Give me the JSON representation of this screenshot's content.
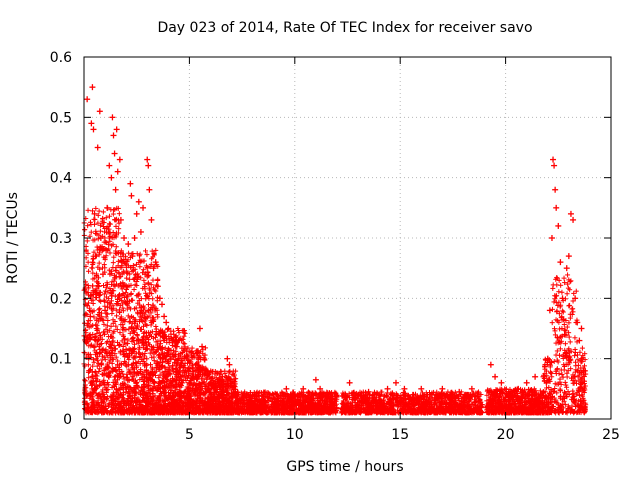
{
  "chart_data": {
    "type": "scatter",
    "title": "Day 023 of 2014, Rate Of TEC Index for receiver savo",
    "xlabel": "GPS time / hours",
    "ylabel": "ROTI / TECUs",
    "xlim": [
      0,
      25
    ],
    "ylim": [
      0,
      0.6
    ],
    "x_ticks": [
      "0",
      "5",
      "10",
      "15",
      "20",
      "25"
    ],
    "y_ticks": [
      "0",
      "0.1",
      "0.2",
      "0.3",
      "0.4",
      "0.5",
      "0.6"
    ],
    "x_tick_values": [
      0,
      5,
      10,
      15,
      20,
      25
    ],
    "y_tick_values": [
      0,
      0.1,
      0.2,
      0.3,
      0.4,
      0.5,
      0.6
    ],
    "grid": true,
    "marker": "plus",
    "series": [
      {
        "name": "ROTI",
        "color": "#ff0000",
        "points": [
          [
            0.1,
            0.04
          ],
          [
            0.15,
            0.53
          ],
          [
            0.25,
            0.08
          ],
          [
            0.3,
            0.17
          ],
          [
            0.35,
            0.49
          ],
          [
            0.4,
            0.55
          ],
          [
            0.45,
            0.48
          ],
          [
            0.5,
            0.34
          ],
          [
            0.55,
            0.27
          ],
          [
            0.6,
            0.11
          ],
          [
            0.65,
            0.45
          ],
          [
            0.7,
            0.22
          ],
          [
            0.75,
            0.51
          ],
          [
            0.8,
            0.3
          ],
          [
            0.9,
            0.24
          ],
          [
            1.0,
            0.18
          ],
          [
            1.05,
            0.28
          ],
          [
            1.1,
            0.35
          ],
          [
            1.2,
            0.42
          ],
          [
            1.3,
            0.4
          ],
          [
            1.35,
            0.5
          ],
          [
            1.4,
            0.47
          ],
          [
            1.45,
            0.44
          ],
          [
            1.5,
            0.38
          ],
          [
            1.55,
            0.48
          ],
          [
            1.6,
            0.41
          ],
          [
            1.7,
            0.43
          ],
          [
            1.75,
            0.33
          ],
          [
            1.8,
            0.26
          ],
          [
            1.9,
            0.3
          ],
          [
            2.0,
            0.22
          ],
          [
            2.1,
            0.29
          ],
          [
            2.2,
            0.39
          ],
          [
            2.25,
            0.37
          ],
          [
            2.3,
            0.27
          ],
          [
            2.4,
            0.3
          ],
          [
            2.5,
            0.34
          ],
          [
            2.6,
            0.36
          ],
          [
            2.7,
            0.31
          ],
          [
            2.8,
            0.35
          ],
          [
            2.9,
            0.24
          ],
          [
            3.0,
            0.43
          ],
          [
            3.05,
            0.42
          ],
          [
            3.1,
            0.38
          ],
          [
            3.2,
            0.33
          ],
          [
            3.3,
            0.25
          ],
          [
            3.4,
            0.26
          ],
          [
            3.5,
            0.22
          ],
          [
            3.6,
            0.2
          ],
          [
            3.7,
            0.19
          ],
          [
            3.8,
            0.17
          ],
          [
            3.9,
            0.16
          ],
          [
            4.0,
            0.15
          ],
          [
            4.2,
            0.13
          ],
          [
            4.4,
            0.12
          ],
          [
            4.5,
            0.1
          ],
          [
            4.7,
            0.08
          ],
          [
            4.8,
            0.07
          ],
          [
            5.0,
            0.06
          ],
          [
            5.2,
            0.07
          ],
          [
            5.4,
            0.11
          ],
          [
            5.5,
            0.15
          ],
          [
            5.6,
            0.12
          ],
          [
            5.8,
            0.08
          ],
          [
            6.0,
            0.06
          ],
          [
            6.2,
            0.05
          ],
          [
            6.4,
            0.06
          ],
          [
            6.6,
            0.04
          ],
          [
            6.8,
            0.1
          ],
          [
            6.9,
            0.09
          ],
          [
            7.2,
            0.04
          ],
          [
            7.6,
            0.03
          ],
          [
            8.0,
            0.04
          ],
          [
            8.4,
            0.03
          ],
          [
            8.8,
            0.04
          ],
          [
            9.2,
            0.03
          ],
          [
            9.6,
            0.05
          ],
          [
            10.0,
            0.04
          ],
          [
            10.4,
            0.05
          ],
          [
            10.8,
            0.04
          ],
          [
            11.0,
            0.065
          ],
          [
            11.2,
            0.05
          ],
          [
            11.6,
            0.04
          ],
          [
            12.4,
            0.04
          ],
          [
            12.6,
            0.06
          ],
          [
            13.0,
            0.04
          ],
          [
            13.5,
            0.045
          ],
          [
            14.0,
            0.04
          ],
          [
            14.4,
            0.05
          ],
          [
            14.8,
            0.06
          ],
          [
            15.2,
            0.05
          ],
          [
            15.6,
            0.04
          ],
          [
            16.0,
            0.05
          ],
          [
            16.5,
            0.04
          ],
          [
            17.0,
            0.05
          ],
          [
            17.4,
            0.04
          ],
          [
            17.8,
            0.045
          ],
          [
            18.2,
            0.04
          ],
          [
            18.4,
            0.05
          ],
          [
            19.3,
            0.09
          ],
          [
            19.5,
            0.07
          ],
          [
            19.8,
            0.06
          ],
          [
            20.2,
            0.04
          ],
          [
            20.6,
            0.05
          ],
          [
            21.0,
            0.06
          ],
          [
            21.4,
            0.07
          ],
          [
            21.8,
            0.07
          ],
          [
            22.0,
            0.1
          ],
          [
            22.1,
            0.18
          ],
          [
            22.2,
            0.3
          ],
          [
            22.25,
            0.43
          ],
          [
            22.3,
            0.42
          ],
          [
            22.35,
            0.38
          ],
          [
            22.4,
            0.35
          ],
          [
            22.5,
            0.32
          ],
          [
            22.6,
            0.26
          ],
          [
            22.7,
            0.2
          ],
          [
            22.8,
            0.14
          ],
          [
            22.9,
            0.25
          ],
          [
            23.0,
            0.27
          ],
          [
            23.1,
            0.34
          ],
          [
            23.2,
            0.33
          ],
          [
            23.3,
            0.2
          ],
          [
            23.4,
            0.16
          ],
          [
            23.5,
            0.13
          ],
          [
            23.6,
            0.15
          ],
          [
            23.7,
            0.08
          ]
        ]
      }
    ]
  }
}
